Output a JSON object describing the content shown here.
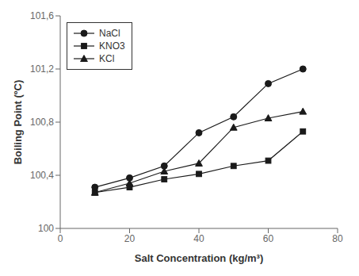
{
  "chart_data": {
    "type": "line",
    "x": [
      10,
      20,
      30,
      40,
      50,
      60,
      70
    ],
    "series": [
      {
        "name": "NaCl",
        "color": "#1a1a1a",
        "marker": "circle",
        "values": [
          100.31,
          100.38,
          100.47,
          100.72,
          100.84,
          101.09,
          101.2
        ]
      },
      {
        "name": "KNO3",
        "color": "#1a1a1a",
        "marker": "square",
        "values": [
          100.27,
          100.31,
          100.37,
          100.41,
          100.47,
          100.51,
          100.73
        ]
      },
      {
        "name": "KCl",
        "color": "#1a1a1a",
        "marker": "triangle",
        "values": [
          100.27,
          100.34,
          100.43,
          100.49,
          100.76,
          100.83,
          100.88
        ]
      }
    ],
    "xlabel": "Salt Concentration  (kg/m³)",
    "ylabel": "Boiling Point (ºC)",
    "xlim": [
      0,
      80
    ],
    "ylim": [
      100.0,
      101.6
    ],
    "xticks": [
      0,
      20,
      40,
      60,
      80
    ],
    "yticks": [
      100,
      {
        "value": 100.4,
        "label": "100,4"
      },
      {
        "value": 100.8,
        "label": "100,8"
      },
      {
        "value": 101.2,
        "label": "101,2"
      },
      {
        "value": 101.6,
        "label": "101,6"
      }
    ],
    "grid": false,
    "legend": "upper left"
  }
}
